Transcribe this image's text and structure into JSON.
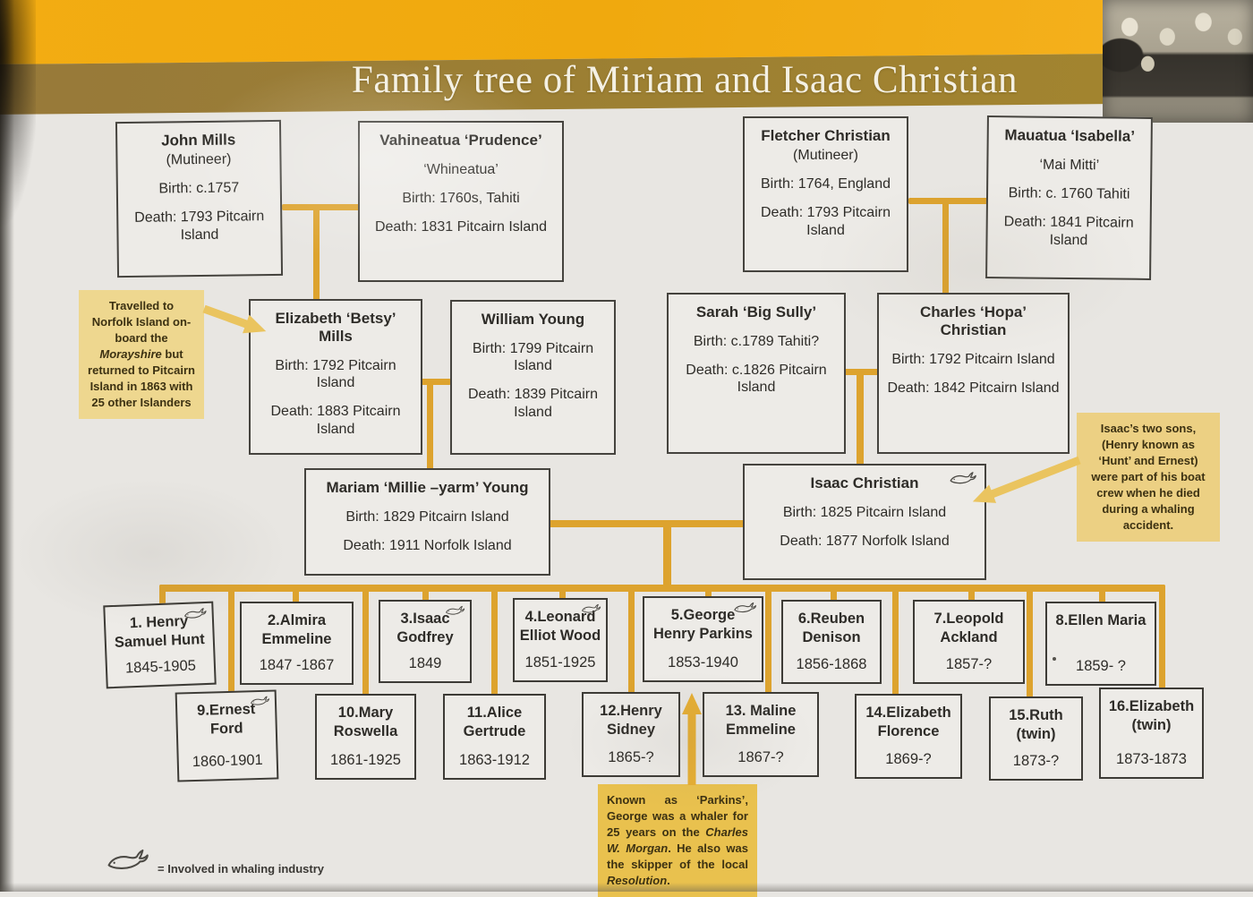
{
  "header": {
    "title": "Family tree of Miriam and Isaac Christian"
  },
  "generation1": {
    "john_mills": {
      "name": "John Mills",
      "line2": "(Mutineer)",
      "birth": "Birth: c.1757",
      "death": "Death: 1793 Pitcairn Island"
    },
    "vahineatua": {
      "name": "Vahineatua ‘Prudence’",
      "line2": "‘Whineatua’",
      "birth": "Birth: 1760s, Tahiti",
      "death": "Death: 1831 Pitcairn Island"
    },
    "fletcher_christian": {
      "name": "Fletcher Christian",
      "line2": "(Mutineer)",
      "birth": "Birth: 1764, England",
      "death": "Death: 1793 Pitcairn Island"
    },
    "mauatua": {
      "name": "Mauatua ‘Isabella’",
      "line2": "‘Mai Mitti’",
      "birth": "Birth: c. 1760 Tahiti",
      "death": "Death: 1841 Pitcairn Island"
    }
  },
  "generation2": {
    "elizabeth_mills": {
      "name": "Elizabeth ‘Betsy’ Mills",
      "birth": "Birth: 1792 Pitcairn Island",
      "death": "Death: 1883 Pitcairn Island"
    },
    "william_young": {
      "name": "William Young",
      "birth": "Birth: 1799 Pitcairn Island",
      "death": "Death: 1839 Pitcairn Island"
    },
    "sarah": {
      "name": "Sarah ‘Big Sully’",
      "birth": "Birth: c.1789 Tahiti?",
      "death": "Death: c.1826 Pitcairn Island"
    },
    "charles_christian": {
      "name": "Charles ‘Hopa’ Christian",
      "birth": "Birth: 1792 Pitcairn Island",
      "death": "Death: 1842 Pitcairn Island"
    }
  },
  "generation3": {
    "mariam_young": {
      "name": "Mariam ‘Millie –yarm’ Young",
      "birth": "Birth: 1829 Pitcairn Island",
      "death": "Death: 1911 Norfolk Island"
    },
    "isaac_christian": {
      "name": "Isaac Christian",
      "birth": "Birth: 1825 Pitcairn Island",
      "death": "Death: 1877 Norfolk Island"
    }
  },
  "children": [
    {
      "name": "1. Henry Samuel Hunt",
      "years": "1845-1905"
    },
    {
      "name": "2.Almira Emmeline",
      "years": "1847 -1867"
    },
    {
      "name": "3.Isaac Godfrey",
      "years": "1849"
    },
    {
      "name": "4.Leonard Elliot Wood",
      "years": "1851-1925"
    },
    {
      "name": "5.George Henry Parkins",
      "years": "1853-1940"
    },
    {
      "name": "6.Reuben Denison",
      "years": "1856-1868"
    },
    {
      "name": "7.Leopold Ackland",
      "years": "1857-?"
    },
    {
      "name": "8.Ellen Maria",
      "years": "1859- ?"
    },
    {
      "name": "9.Ernest Ford",
      "years": "1860-1901"
    },
    {
      "name": "10.Mary Roswella",
      "years": "1861-1925"
    },
    {
      "name": "11.Alice Gertrude",
      "years": "1863-1912"
    },
    {
      "name": "12.Henry Sidney",
      "years": "1865-?"
    },
    {
      "name": "13. Maline Emmeline",
      "years": "1867-?"
    },
    {
      "name": "14.Elizabeth Florence",
      "years": "1869-?"
    },
    {
      "name": "15.Ruth (twin)",
      "years": "1873-?"
    },
    {
      "name": "16.Elizabeth (twin)",
      "years": "1873-1873"
    }
  ],
  "notes": {
    "norfolk": {
      "part1": "Travelled to Norfolk Island on-board the ",
      "ship": "Morayshire",
      "part2": " but returned to Pitcairn Island in 1863 with 25 other Islanders"
    },
    "isaac_sons": "Isaac’s two sons, (Henry known as ‘Hunt’ and Ernest) were part of his boat crew when he died during a whaling accident.",
    "parkins": {
      "part1": "Known as ‘Parkins’, George was a whaler for 25 years on the ",
      "ship1": "Charles W. Morgan",
      "part2": ". He also was the skipper of the local ",
      "ship2": "Resolution",
      "part3": "."
    }
  },
  "legend": {
    "whale_meaning": "= Involved in whaling industry"
  },
  "colors": {
    "band_yellow": "#f2a912",
    "band_olive": "#9c7f33",
    "connector_gold": "#dda32e",
    "note_pale": "#eed78f",
    "note_gold": "#e9c14e",
    "paper": "#e8e6e2",
    "box_border": "#45433e"
  }
}
